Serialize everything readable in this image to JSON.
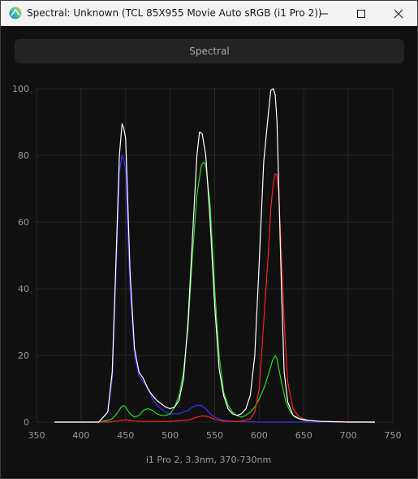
{
  "window": {
    "title": "Spectral: Unknown (TCL 85X955 Movie Auto sRGB (i1 Pro 2))",
    "icon": "app-spectrum-icon"
  },
  "header": {
    "label": "Spectral"
  },
  "chart_data": {
    "type": "line",
    "title": "",
    "xlabel": "i1 Pro 2, 3.3nm, 370-730nm",
    "ylabel": "",
    "xlim": [
      350,
      750
    ],
    "ylim": [
      0,
      100
    ],
    "x_ticks": [
      350,
      400,
      450,
      500,
      550,
      600,
      650,
      700,
      750
    ],
    "y_ticks": [
      0,
      20,
      40,
      60,
      80,
      100
    ],
    "grid": true,
    "legend": "none",
    "series": [
      {
        "color": "#ffffff",
        "x": [
          370,
          400,
          420,
          430,
          435,
          440,
          443,
          446,
          448,
          450,
          452,
          455,
          460,
          465,
          470,
          475,
          480,
          485,
          490,
          495,
          500,
          505,
          510,
          515,
          520,
          525,
          530,
          533,
          536,
          540,
          545,
          550,
          555,
          560,
          565,
          570,
          575,
          580,
          585,
          590,
          595,
          600,
          605,
          610,
          613,
          616,
          618,
          620,
          622,
          625,
          628,
          632,
          638,
          645,
          655,
          670,
          700,
          730
        ],
        "y": [
          0,
          0,
          0,
          3,
          15,
          55,
          80,
          89.5,
          88,
          85,
          70,
          45,
          22,
          15,
          13,
          10,
          8,
          6.5,
          5.5,
          4.5,
          4,
          4.5,
          6.5,
          13,
          30,
          55,
          80,
          87,
          86.5,
          80,
          60,
          35,
          16,
          8,
          4,
          2.5,
          2,
          2.5,
          4,
          8,
          20,
          48,
          78,
          92,
          99.5,
          100,
          98,
          90,
          70,
          40,
          15,
          6,
          2,
          1,
          0.5,
          0.2,
          0,
          0
        ]
      },
      {
        "color": "#3a2cff",
        "x": [
          370,
          400,
          420,
          430,
          435,
          440,
          443,
          446,
          448,
          450,
          452,
          455,
          460,
          465,
          470,
          475,
          480,
          485,
          490,
          495,
          500,
          505,
          510,
          520,
          525,
          530,
          535,
          540,
          545,
          550,
          560,
          570,
          600,
          650,
          730
        ],
        "y": [
          0,
          0,
          0,
          3,
          13,
          50,
          75,
          80,
          78.5,
          76,
          60,
          40,
          20,
          14,
          12,
          10,
          7,
          5,
          4,
          3,
          2.5,
          2.5,
          2.5,
          3.5,
          4.5,
          5,
          5,
          4,
          2.5,
          1.5,
          0.5,
          0.2,
          0,
          0,
          0
        ]
      },
      {
        "color": "#22e022",
        "x": [
          370,
          420,
          430,
          435,
          440,
          445,
          448,
          450,
          455,
          460,
          465,
          470,
          475,
          480,
          485,
          490,
          495,
          500,
          505,
          510,
          515,
          520,
          525,
          530,
          535,
          538,
          540,
          545,
          550,
          555,
          560,
          565,
          570,
          575,
          580,
          585,
          590,
          595,
          600,
          605,
          610,
          615,
          618,
          620,
          622,
          625,
          630,
          635,
          640,
          650,
          670,
          700,
          730
        ],
        "y": [
          0,
          0,
          0.5,
          1,
          2.5,
          4.5,
          5,
          4.5,
          2.5,
          1.5,
          2,
          3.5,
          4,
          3.5,
          2.5,
          2,
          2,
          2.5,
          4.5,
          8,
          15,
          28,
          50,
          68,
          77,
          78,
          77,
          65,
          40,
          20,
          9,
          5,
          3,
          2,
          1.5,
          2,
          3,
          4.5,
          7,
          10,
          14,
          18.5,
          20,
          19,
          16,
          12,
          6,
          3,
          1.5,
          0.5,
          0.2,
          0,
          0
        ]
      },
      {
        "color": "#ff2020",
        "x": [
          370,
          430,
          440,
          445,
          450,
          455,
          460,
          470,
          500,
          520,
          525,
          530,
          535,
          540,
          545,
          550,
          560,
          575,
          580,
          590,
          595,
          600,
          605,
          610,
          613,
          616,
          618,
          620,
          622,
          625,
          628,
          632,
          638,
          645,
          655,
          670,
          730
        ],
        "y": [
          0,
          0,
          0.3,
          0.5,
          0.7,
          0.5,
          0.3,
          0.2,
          0.2,
          0.6,
          1,
          1.5,
          1.8,
          1.8,
          1.4,
          0.8,
          0.3,
          0.2,
          0.3,
          1,
          3,
          10,
          30,
          50,
          64,
          72,
          74.5,
          74,
          68,
          50,
          30,
          12,
          4,
          1.5,
          0.5,
          0.2,
          0
        ]
      }
    ]
  }
}
